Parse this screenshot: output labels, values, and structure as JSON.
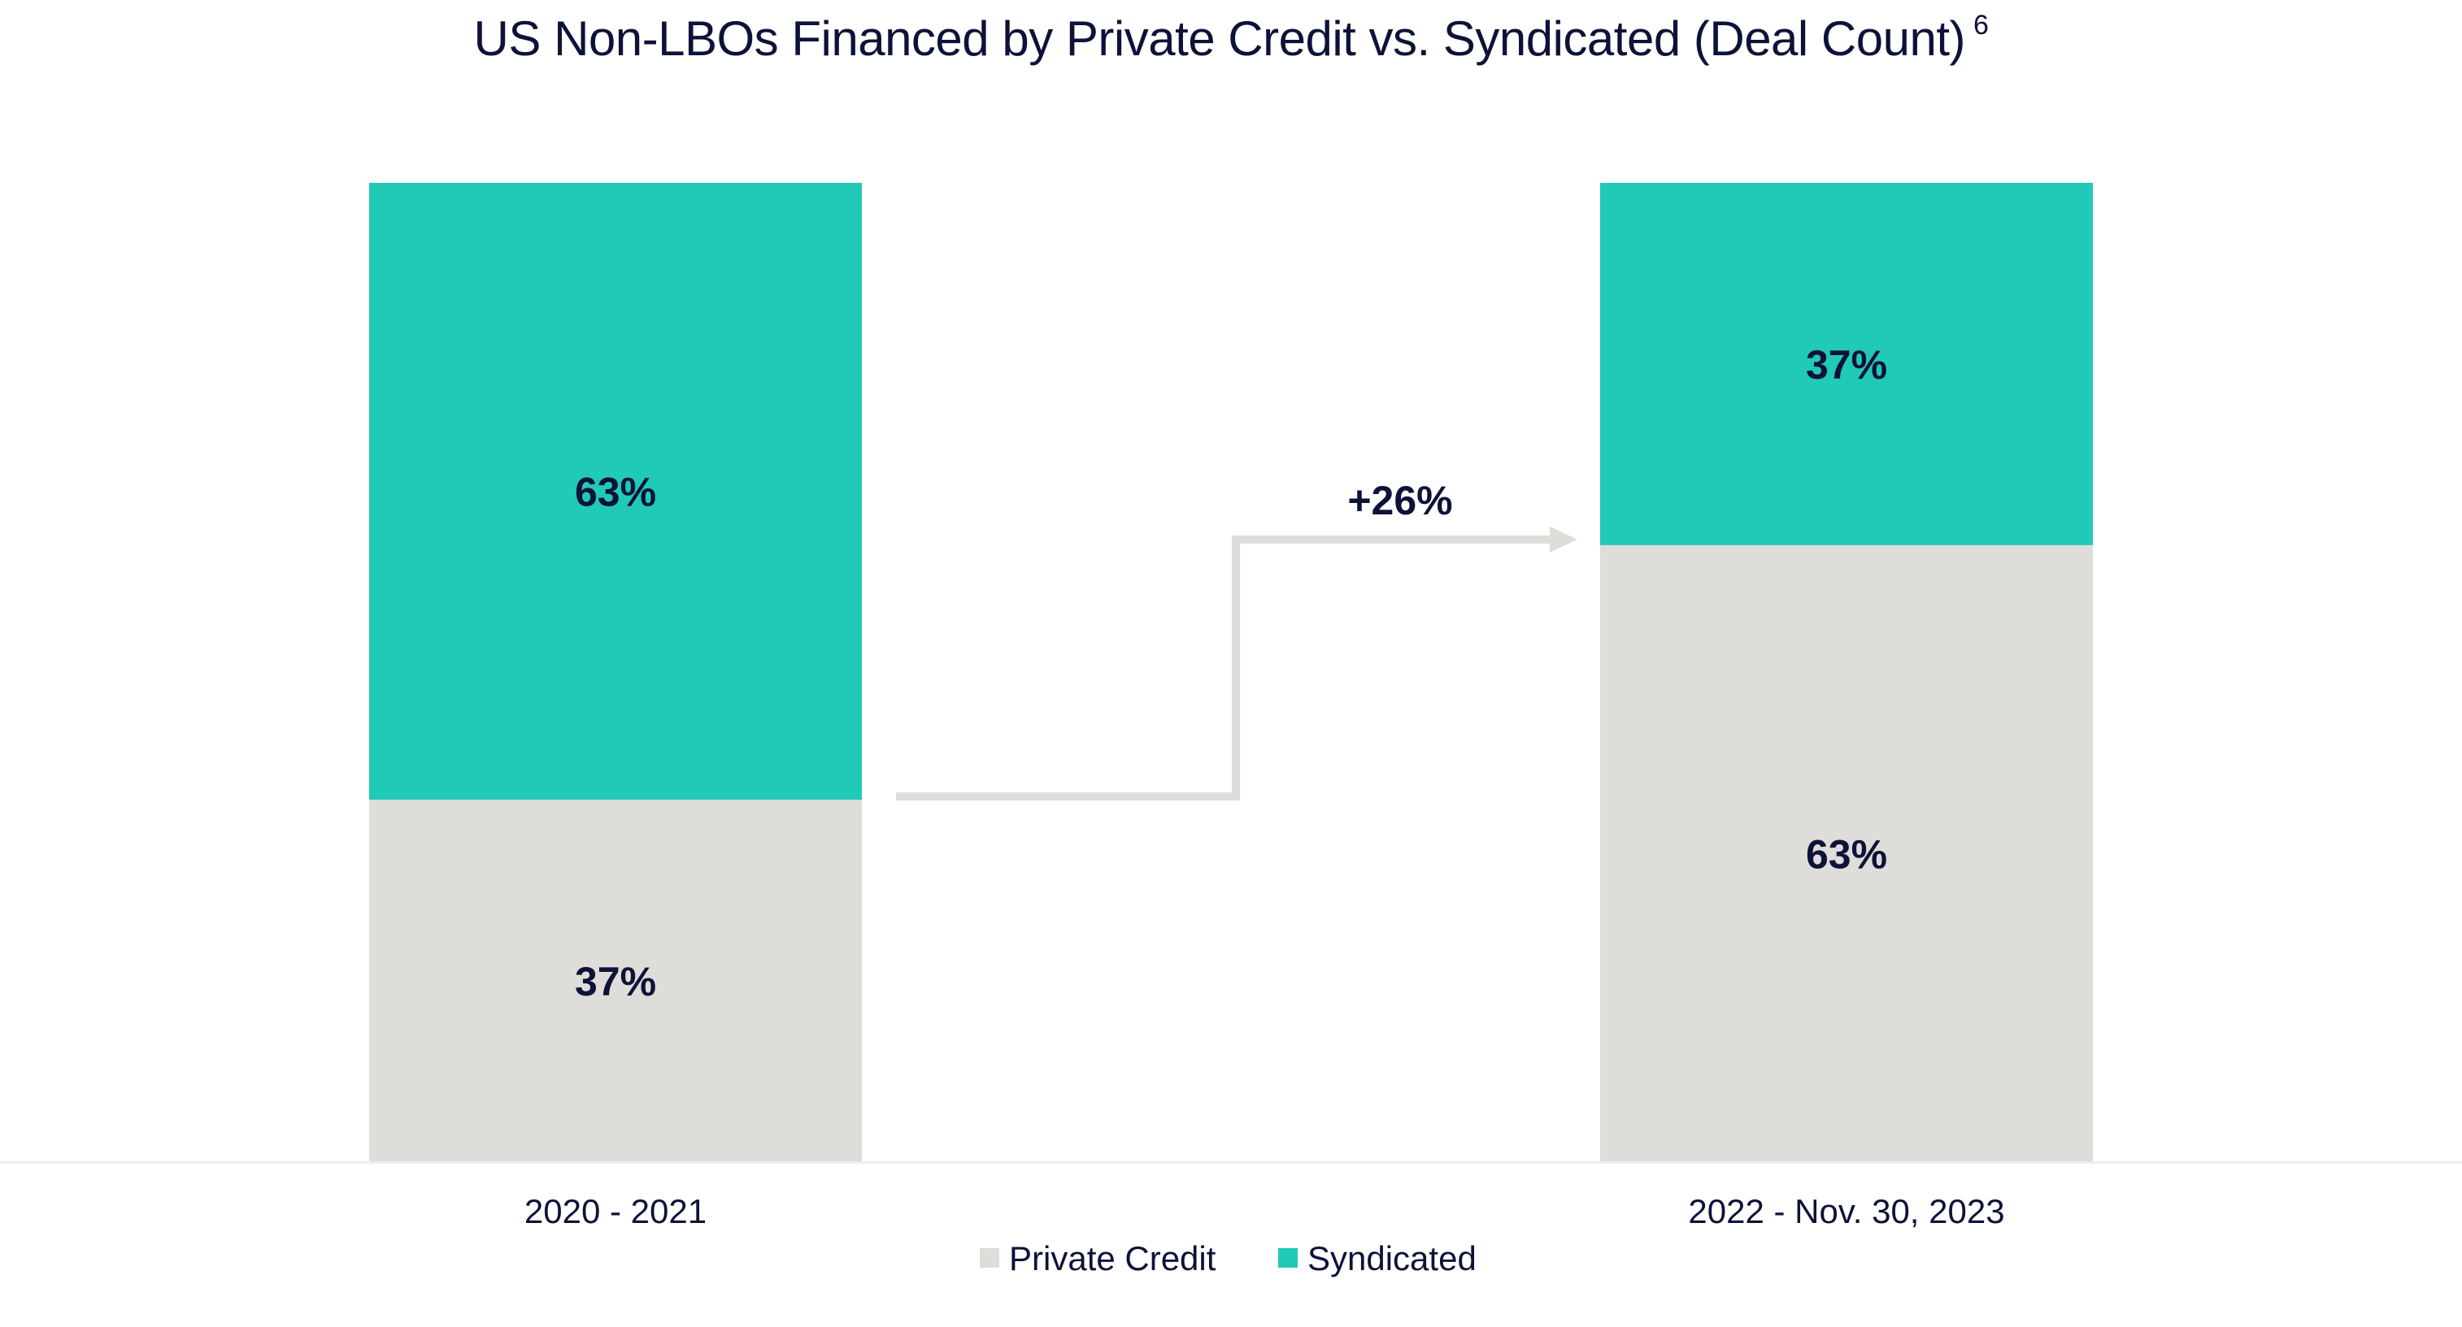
{
  "chart_data": {
    "type": "bar",
    "stacked": true,
    "title": "US Non-LBOs Financed by Private Credit vs. Syndicated (Deal Count)",
    "title_superscript": "6",
    "categories": [
      "2020 - 2021",
      "2022 - Nov. 30, 2023"
    ],
    "series": [
      {
        "name": "Private Credit",
        "values": [
          37,
          63
        ],
        "labels": [
          "37%",
          "63%"
        ],
        "color": "#deddd9"
      },
      {
        "name": "Syndicated",
        "values": [
          63,
          37
        ],
        "labels": [
          "63%",
          "37%"
        ],
        "color": "#21c9b7"
      }
    ],
    "ylim": [
      0,
      100
    ],
    "grid": false,
    "legend_position": "bottom-center",
    "annotation": {
      "text": "+26%",
      "from": "2020 - 2021",
      "to": "2022 - Nov. 30, 2023",
      "color": "#deddd9"
    },
    "colors": {
      "text": "#0d1238",
      "baseline": "#eeeeee"
    }
  }
}
